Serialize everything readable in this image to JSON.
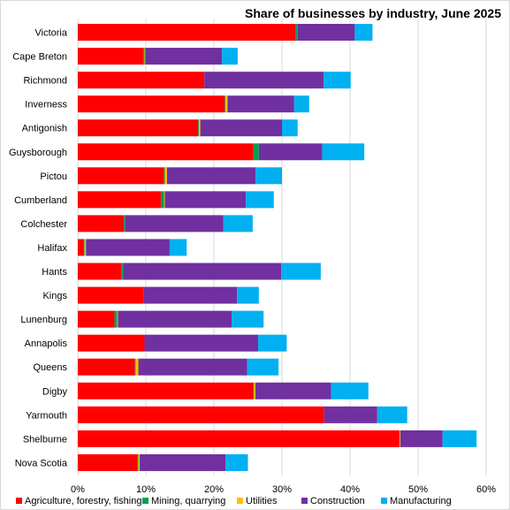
{
  "chart_data": {
    "type": "bar",
    "orientation": "horizontal",
    "stacked": true,
    "title": "Share of businesses  by industry, June 2025",
    "xlabel": "",
    "ylabel": "",
    "xlim": [
      0,
      60
    ],
    "x_ticks": [
      "0%",
      "10%",
      "20%",
      "30%",
      "40%",
      "50%",
      "60%"
    ],
    "grid": true,
    "legend_position": "bottom",
    "categories": [
      "Victoria",
      "Cape Breton",
      "Richmond",
      "Inverness",
      "Antigonish",
      "Guysborough",
      "Pictou",
      "Cumberland",
      "Colchester",
      "Halifax",
      "Hants",
      "Kings",
      "Lunenburg",
      "Annapolis",
      "Queens",
      "Digby",
      "Yarmouth",
      "Shelburne",
      "Nova Scotia"
    ],
    "series": [
      {
        "name": "Agriculture, forestry, fishing",
        "color": "#ff0000",
        "values": [
          32.0,
          9.6,
          18.6,
          21.6,
          17.7,
          25.8,
          12.7,
          12.2,
          6.8,
          0.9,
          6.4,
          9.7,
          5.4,
          9.8,
          8.4,
          25.8,
          36.2,
          47.3,
          8.8
        ]
      },
      {
        "name": "Mining, quarrying",
        "color": "#00a050",
        "values": [
          0.3,
          0.2,
          0.0,
          0.1,
          0.1,
          0.8,
          0.1,
          0.5,
          0.2,
          0.1,
          0.3,
          0.0,
          0.4,
          0.0,
          0.1,
          0.1,
          0.0,
          0.0,
          0.1
        ]
      },
      {
        "name": "Utilities",
        "color": "#ffc000",
        "values": [
          0.0,
          0.1,
          0.0,
          0.3,
          0.2,
          0.0,
          0.3,
          0.1,
          0.0,
          0.2,
          0.0,
          0.0,
          0.1,
          0.0,
          0.4,
          0.2,
          0.0,
          0.1,
          0.2
        ]
      },
      {
        "name": "Construction",
        "color": "#7030a0",
        "values": [
          8.4,
          11.3,
          17.5,
          9.8,
          12.0,
          9.3,
          13.0,
          11.9,
          14.4,
          12.3,
          23.2,
          13.7,
          16.7,
          16.7,
          16.0,
          11.1,
          7.8,
          6.2,
          12.6
        ]
      },
      {
        "name": "Manufacturing",
        "color": "#00b0f0",
        "values": [
          2.6,
          2.3,
          4.0,
          2.2,
          2.3,
          6.2,
          3.9,
          4.1,
          4.3,
          2.5,
          5.8,
          3.2,
          4.7,
          4.2,
          4.6,
          5.5,
          4.4,
          5.0,
          3.3
        ]
      }
    ]
  }
}
